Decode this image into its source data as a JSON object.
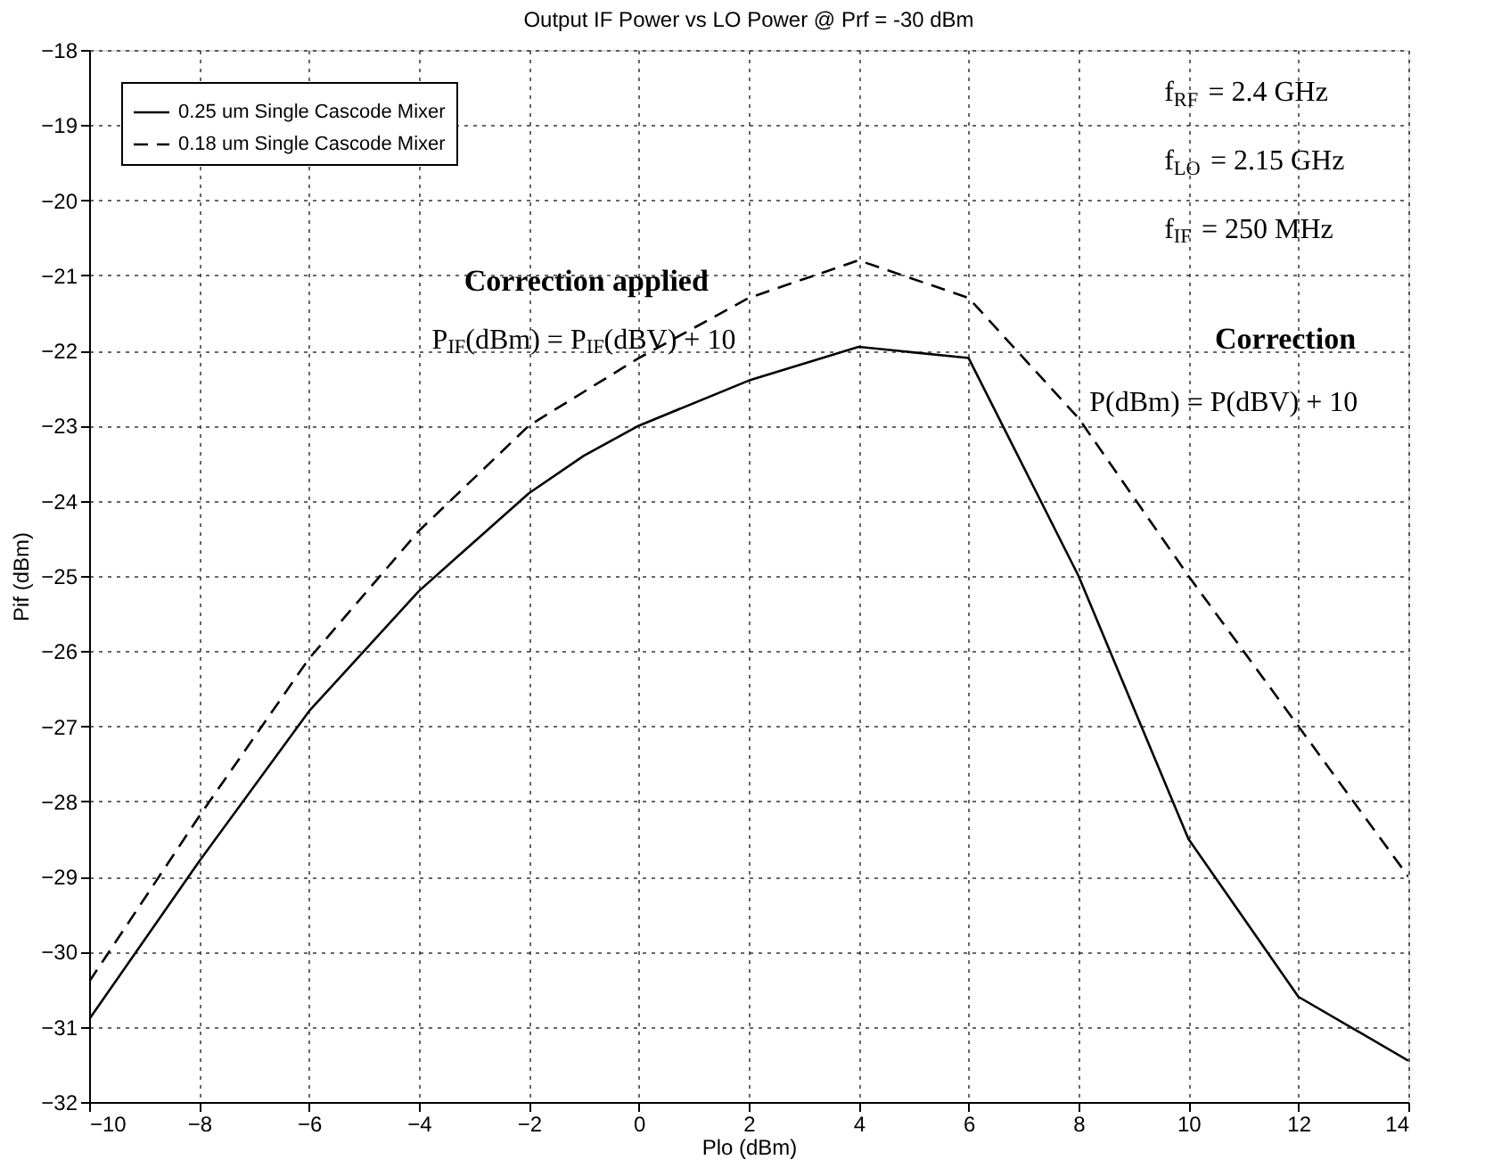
{
  "chart_data": {
    "type": "line",
    "title": "Output IF Power vs LO Power @ Prf = -30 dBm",
    "xlabel": "Plo (dBm)",
    "ylabel": "Pif (dBm)",
    "x": [
      -10,
      -8,
      -6,
      -4,
      -2,
      -1,
      0,
      2,
      4,
      6,
      8,
      10,
      12,
      14
    ],
    "series": [
      {
        "name": "0.25 um Single Cascode Mixer",
        "color": "#000000",
        "line_style": "solid",
        "values": [
          -30.9,
          -28.8,
          -26.8,
          -25.2,
          -23.9,
          -23.4,
          -23.0,
          -22.4,
          -21.95,
          -22.1,
          -25.0,
          -28.5,
          -30.6,
          -31.45
        ]
      },
      {
        "name": "0.18 um Single Cascode Mixer",
        "color": "#000000",
        "line_style": "dashed",
        "values": [
          -30.4,
          -28.2,
          -26.1,
          -24.4,
          -23.0,
          -22.55,
          -22.1,
          -21.3,
          -20.8,
          -21.3,
          -22.9,
          -25.0,
          -27.0,
          -29.0
        ]
      }
    ],
    "xlim": [
      -10,
      14
    ],
    "xticks": [
      -10,
      -8,
      -6,
      -4,
      -2,
      0,
      2,
      4,
      6,
      8,
      10,
      12,
      14
    ],
    "ylim": [
      -32,
      -18
    ],
    "yticks": [
      -32,
      -31,
      -30,
      -29,
      -28,
      -27,
      -26,
      -25,
      -24,
      -23,
      -22,
      -21,
      -20,
      -19,
      -18
    ],
    "grid": true,
    "legend": "top left",
    "marker": "none",
    "annotations": [
      "f$_{RF}$ = 2.4 GHz",
      "f$_{LO}$ = 2.15 GHz",
      "f$_{IF}$ = 250 MHz",
      "Correction applied",
      "P$_{IF}$(dBm) = P$_{IF}$(dBV) + 10",
      "Correction",
      "P(dBm) = P(dBV) + 10"
    ]
  }
}
